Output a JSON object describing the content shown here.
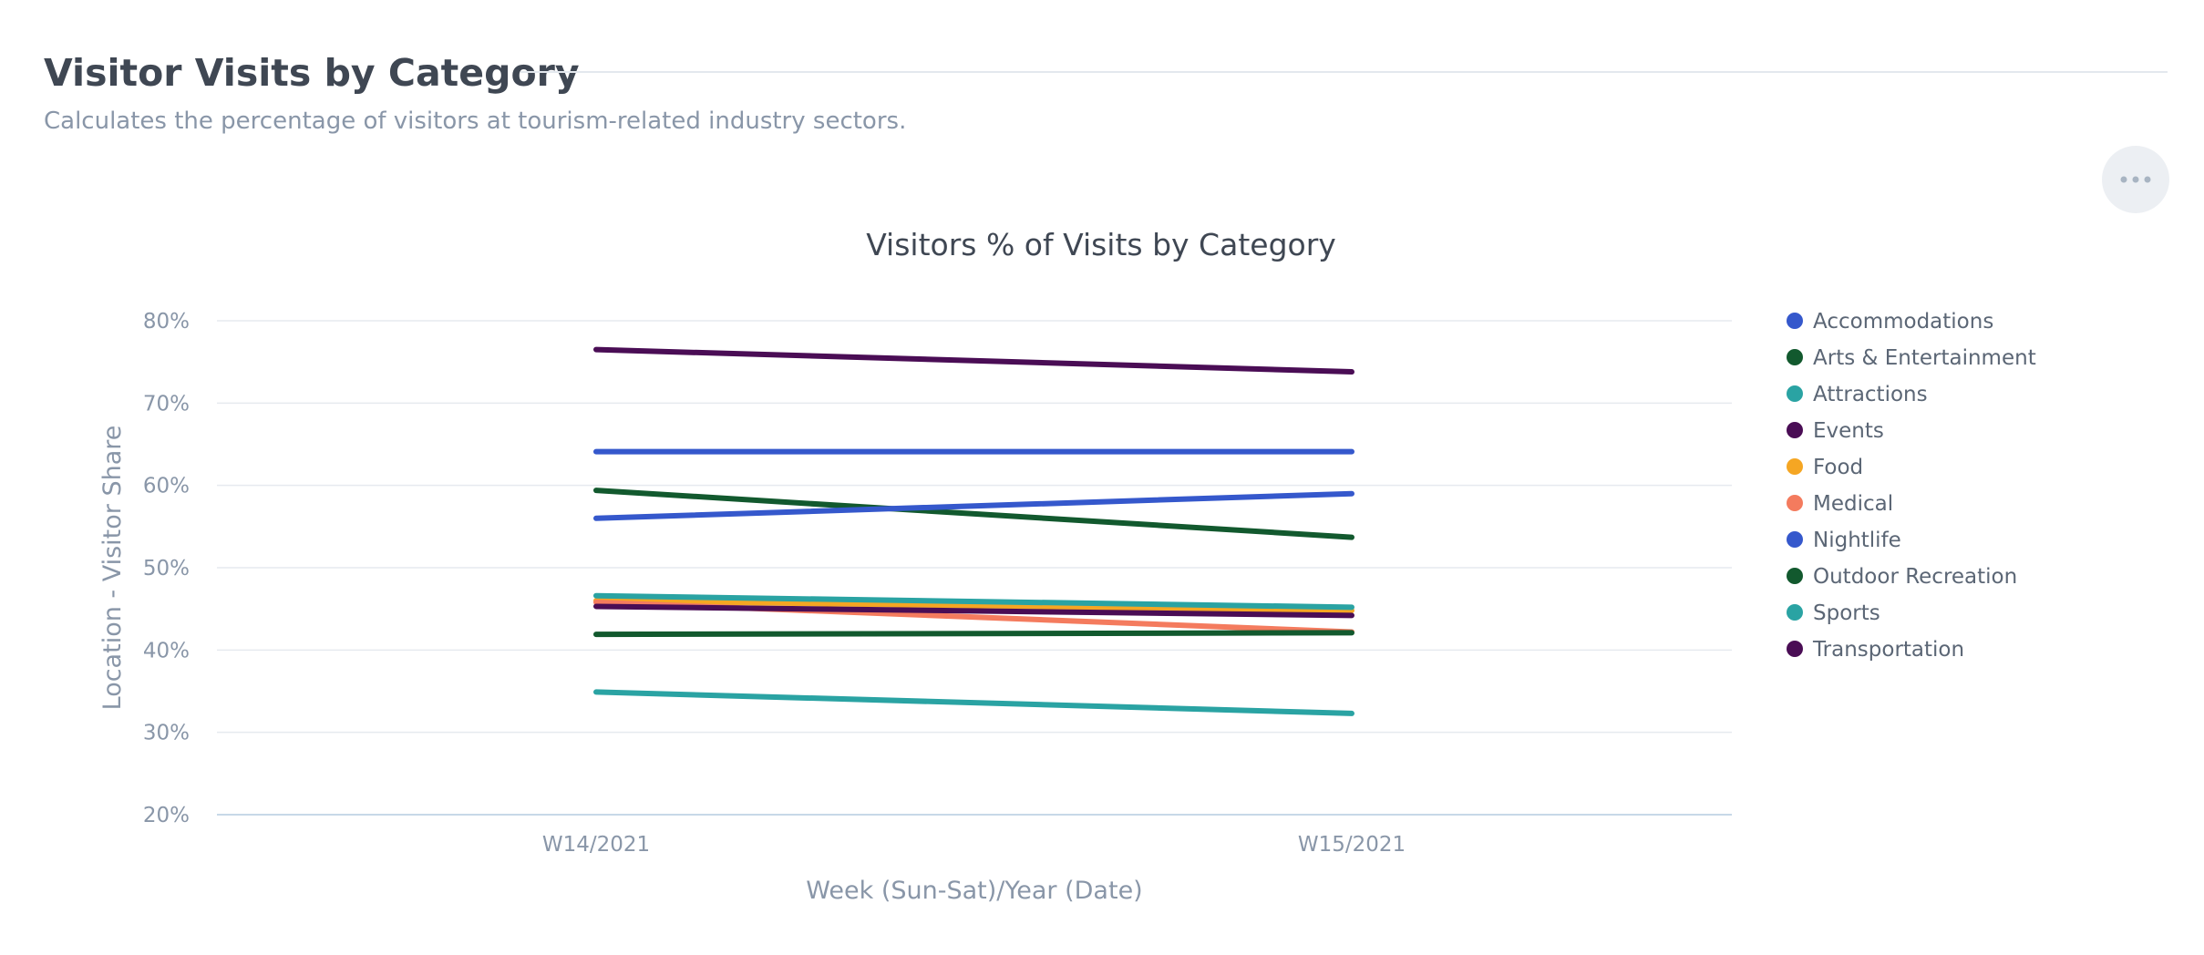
{
  "page": {
    "title": "Visitor Visits by Category",
    "subtitle": "Calculates the percentage of visitors at tourism-related industry sectors.",
    "menu_icon": "more-horizontal-icon"
  },
  "colors": {
    "text_dark": "#3f4753",
    "text_muted": "#8996a8",
    "grid": "#e6eaef",
    "axis": "#c7d8e8"
  },
  "chart_data": {
    "type": "line",
    "title": "Visitors % of Visits by Category",
    "xlabel": "Week (Sun-Sat)/Year (Date)",
    "ylabel": "Location - Visitor Share",
    "categories": [
      "W14/2021",
      "W15/2021"
    ],
    "ylim": [
      20,
      80
    ],
    "yticks": [
      20,
      30,
      40,
      50,
      60,
      70,
      80
    ],
    "ytick_labels": [
      "20%",
      "30%",
      "40%",
      "50%",
      "60%",
      "70%",
      "80%"
    ],
    "grid": true,
    "legend_position": "right",
    "series": [
      {
        "name": "Accommodations",
        "color": "#3558cc",
        "values": [
          64.1,
          64.1
        ]
      },
      {
        "name": "Arts & Entertainment",
        "color": "#12592e",
        "values": [
          59.4,
          53.7
        ]
      },
      {
        "name": "Attractions",
        "color": "#2aa3a3",
        "values": [
          34.9,
          32.3
        ]
      },
      {
        "name": "Events",
        "color": "#4a0d55",
        "values": [
          76.5,
          73.8
        ]
      },
      {
        "name": "Food",
        "color": "#f5a623",
        "values": [
          46.0,
          44.8
        ]
      },
      {
        "name": "Medical",
        "color": "#f47b5e",
        "values": [
          45.8,
          42.2
        ]
      },
      {
        "name": "Nightlife",
        "color": "#3558cc",
        "values": [
          56.0,
          59.0
        ]
      },
      {
        "name": "Outdoor Recreation",
        "color": "#12592e",
        "values": [
          41.9,
          42.1
        ]
      },
      {
        "name": "Sports",
        "color": "#2aa3a3",
        "values": [
          46.6,
          45.2
        ]
      },
      {
        "name": "Transportation",
        "color": "#4a0d55",
        "values": [
          45.3,
          44.2
        ]
      }
    ]
  }
}
